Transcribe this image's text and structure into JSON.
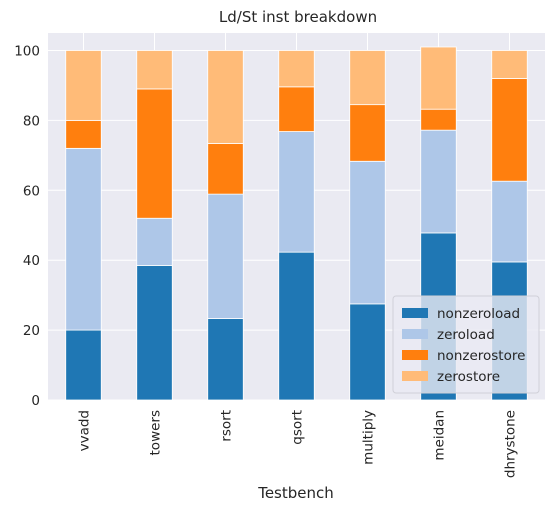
{
  "chart_data": {
    "type": "bar",
    "stacked": true,
    "title": "Ld/St inst breakdown",
    "xlabel": "Testbench",
    "ylabel": "",
    "ylim": [
      0,
      105
    ],
    "yticks": [
      0,
      20,
      40,
      60,
      80,
      100
    ],
    "grid": true,
    "legend_position": "lower-right",
    "categories": [
      "vvadd",
      "towers",
      "rsort",
      "qsort",
      "multiply",
      "meidan",
      "dhrystone"
    ],
    "series": [
      {
        "name": "nonzeroload",
        "color": "#1f77b4",
        "values": [
          20,
          38.5,
          23.3,
          42.3,
          27.5,
          47.8,
          39.5
        ]
      },
      {
        "name": "zeroload",
        "color": "#aec7e8",
        "values": [
          52,
          13.5,
          35.6,
          34.5,
          40.8,
          29.4,
          23.1
        ]
      },
      {
        "name": "nonzerostore",
        "color": "#ff7f0e",
        "values": [
          8,
          37,
          14.5,
          12.8,
          16.2,
          6,
          29.4
        ]
      },
      {
        "name": "zerostore",
        "color": "#ffbb78",
        "values": [
          20,
          11,
          26.6,
          10.4,
          15.5,
          17.8,
          8
        ]
      }
    ]
  }
}
